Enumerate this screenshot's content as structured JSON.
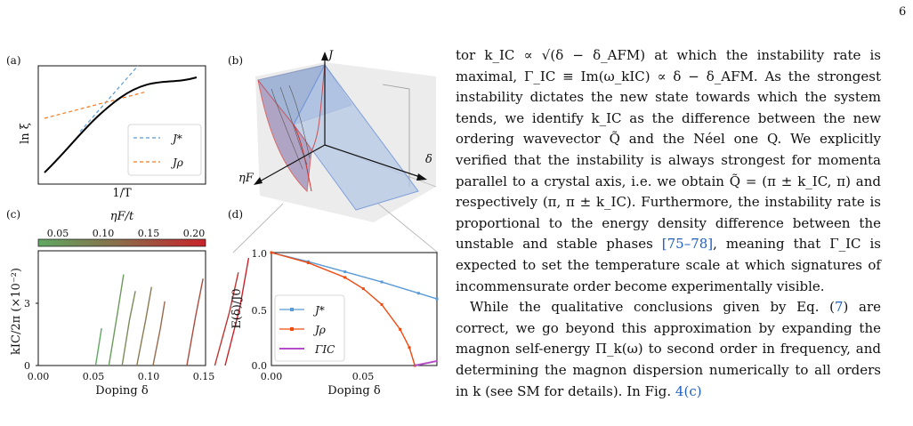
{
  "page_number": "6",
  "panels": {
    "a": {
      "label": "(a)",
      "ylabel": "ln ξ",
      "xlabel": "1/T",
      "legend": [
        {
          "name": "J*",
          "color": "#5b9bd5"
        },
        {
          "name": "Jρ",
          "color": "#f47a20"
        }
      ]
    },
    "b": {
      "label": "(b)",
      "axis_J": "J",
      "axis_eta": "ηF",
      "axis_delta": "δ"
    },
    "c": {
      "label": "(c)",
      "colorbar_label": "ηF/t",
      "colorbar_ticks": [
        "0.05",
        "0.10",
        "0.15",
        "0.20"
      ],
      "ylabel": "kIC/2π (×10⁻²)",
      "yticks": [
        "0",
        "3"
      ],
      "xticks": [
        "0.00",
        "0.05",
        "0.10",
        "0.15"
      ],
      "xlabel": "Doping δ"
    },
    "d": {
      "label": "(d)",
      "ylabel": "E(δ)/J0",
      "yticks": [
        "0.0",
        "0.5",
        "1.0"
      ],
      "xticks": [
        "0.00",
        "0.05"
      ],
      "xlabel": "Doping δ",
      "legend": [
        {
          "name": "J*",
          "color": "#5b9bd5"
        },
        {
          "name": "Jρ",
          "color": "#f04a10"
        },
        {
          "name": "ΓIC",
          "color": "#b44cc8"
        }
      ]
    }
  },
  "chart_data": [
    {
      "type": "line",
      "panel": "d",
      "xlabel": "Doping δ",
      "ylabel": "E(δ)/J0",
      "xlim": [
        0,
        0.09
      ],
      "ylim": [
        0,
        1.0
      ],
      "series": [
        {
          "name": "J*",
          "x": [
            0.0,
            0.02,
            0.04,
            0.06,
            0.08,
            0.09
          ],
          "y": [
            1.0,
            0.92,
            0.83,
            0.74,
            0.64,
            0.59
          ]
        },
        {
          "name": "Jρ",
          "x": [
            0.0,
            0.02,
            0.04,
            0.05,
            0.06,
            0.07,
            0.075,
            0.078
          ],
          "y": [
            1.0,
            0.91,
            0.78,
            0.68,
            0.54,
            0.32,
            0.16,
            0.0
          ]
        },
        {
          "name": "ΓIC",
          "x": [
            0.078,
            0.09
          ],
          "y": [
            0.0,
            0.04
          ]
        }
      ]
    },
    {
      "type": "line",
      "panel": "c",
      "xlabel": "Doping δ",
      "ylabel": "kIC/2π (×10⁻²)",
      "xlim": [
        0,
        0.15
      ],
      "ylim": [
        0,
        5.2
      ],
      "series": [
        {
          "x": [
            0.039,
            0.043
          ],
          "y": [
            0,
            1.8
          ]
        },
        {
          "x": [
            0.048,
            0.054,
            0.058
          ],
          "y": [
            0,
            2.6,
            4.4
          ]
        },
        {
          "x": [
            0.057,
            0.062,
            0.066
          ],
          "y": [
            0,
            2.2,
            3.6
          ]
        },
        {
          "x": [
            0.067,
            0.073,
            0.077
          ],
          "y": [
            0,
            2.2,
            3.8
          ]
        },
        {
          "x": [
            0.078,
            0.083,
            0.086
          ],
          "y": [
            0,
            1.8,
            3.1
          ]
        },
        {
          "x": [
            0.101,
            0.107,
            0.112
          ],
          "y": [
            0,
            2.4,
            4.2
          ]
        },
        {
          "x": [
            0.12,
            0.13,
            0.136
          ],
          "y": [
            0,
            2.6,
            4.5
          ]
        },
        {
          "x": [
            0.127,
            0.137,
            0.143
          ],
          "y": [
            0,
            2.8,
            5.2
          ]
        }
      ]
    }
  ],
  "text": {
    "p1": "tor k_IC ∝ √(δ − δ_AFM) at which the instability rate is maximal, Γ_IC ≡ Im(ω_kIC) ∝ δ − δ_AFM. As the strongest instability dictates the new state towards which the system tends, we identify k_IC as the difference between the new ordering wavevector Q̃ and the Néel one Q. We explicitly verified that the instability is always strongest for momenta parallel to a crystal axis, i.e. we obtain Q̃ = (π ± k_IC, π) and respectively (π, π ± k_IC). Furthermore, the instability rate is proportional to the energy density difference between the unstable and stable phases",
    "p1_cite": "[75–78]",
    "p1_end": ", meaning that Γ_IC is expected to set the temperature scale at which signatures of incommensurate order become experimentally visible.",
    "p2_start": "While the qualitative conclusions given by Eq. (",
    "p2_ref1": "7",
    "p2_mid": ") are correct, we go beyond this approximation by expanding the magnon self-energy Π_k(ω) to second order in frequency, and determining the magnon dispersion numerically to all orders in k (see SM for details). In Fig. ",
    "p2_ref2": "4(c)"
  }
}
